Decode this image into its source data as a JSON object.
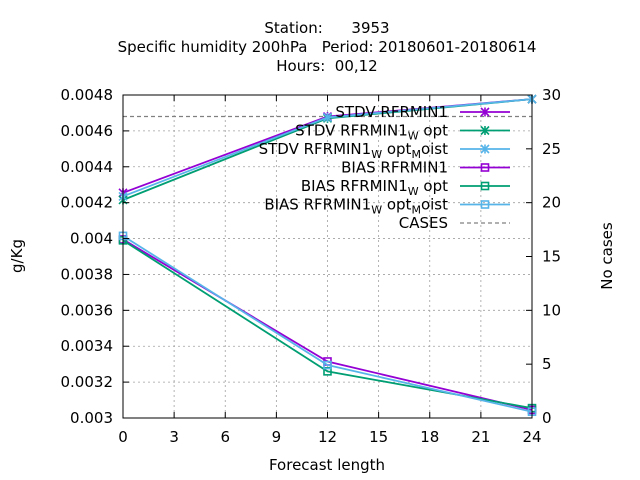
{
  "chart_data": {
    "type": "line",
    "title_lines": [
      "Station:      3953",
      "Specific humidity 200hPa   Period: 20180601-20180614",
      "Hours:  00,12"
    ],
    "xlabel": "Forecast length",
    "ylabel": "g/Kg",
    "y2label": "No cases",
    "xlim": [
      0,
      24
    ],
    "ylim": [
      0.003,
      0.0048
    ],
    "y2lim": [
      0,
      30
    ],
    "xticks": [
      "0",
      "3",
      "6",
      "9",
      "12",
      "15",
      "18",
      "21",
      "24"
    ],
    "yticks": [
      "0.003",
      "0.0032",
      "0.0034",
      "0.0036",
      "0.0038",
      "0.004",
      "0.0042",
      "0.0044",
      "0.0046",
      "0.0048"
    ],
    "y2ticks": [
      "0",
      "5",
      "10",
      "15",
      "20",
      "25",
      "30"
    ],
    "grid": true,
    "legend_position": "top-right",
    "x": [
      0,
      12,
      24
    ],
    "series": [
      {
        "name": "STDV RFRMIN1",
        "legend_main": "STDV RFRMIN1",
        "legend_sub": "",
        "legend_tail": "",
        "legend_sub2": "",
        "legend_tail2": "",
        "color": "#9400d3",
        "marker": "x",
        "axis": "y1",
        "values": [
          0.004255,
          0.00468,
          0.004777
        ]
      },
      {
        "name": "STDV RFRMIN1_W opt",
        "legend_main": "STDV RFRMIN1",
        "legend_sub": "W",
        "legend_tail": "opt",
        "legend_sub2": "",
        "legend_tail2": "",
        "color": "#009e73",
        "marker": "x",
        "axis": "y1",
        "values": [
          0.004215,
          0.00467,
          0.004777
        ]
      },
      {
        "name": "STDV RFRMIN1_W opt_M oist",
        "legend_main": "STDV RFRMIN1",
        "legend_sub": "W",
        "legend_tail": "opt",
        "legend_sub2": "M",
        "legend_tail2": "oist",
        "color": "#56b4e9",
        "marker": "x",
        "axis": "y1",
        "values": [
          0.004235,
          0.004675,
          0.004777
        ]
      },
      {
        "name": "BIAS RFRMIN1",
        "legend_main": "BIAS RFRMIN1",
        "legend_sub": "",
        "legend_tail": "",
        "legend_sub2": "",
        "legend_tail2": "",
        "color": "#9400d3",
        "marker": "square",
        "axis": "y1",
        "values": [
          0.003995,
          0.003315,
          0.003045
        ]
      },
      {
        "name": "BIAS RFRMIN1_W opt",
        "legend_main": "BIAS RFRMIN1",
        "legend_sub": "W",
        "legend_tail": "opt",
        "legend_sub2": "",
        "legend_tail2": "",
        "color": "#009e73",
        "marker": "square",
        "axis": "y1",
        "values": [
          0.00399,
          0.00326,
          0.003055
        ]
      },
      {
        "name": "BIAS RFRMIN1_W opt_M oist",
        "legend_main": "BIAS RFRMIN1",
        "legend_sub": "W",
        "legend_tail": "opt",
        "legend_sub2": "M",
        "legend_tail2": "oist",
        "color": "#56b4e9",
        "marker": "square",
        "axis": "y1",
        "values": [
          0.004015,
          0.003295,
          0.003035
        ]
      },
      {
        "name": "CASES",
        "legend_main": "CASES",
        "legend_sub": "",
        "legend_tail": "",
        "legend_sub2": "",
        "legend_tail2": "",
        "color": "#808080",
        "marker": "none",
        "dashed": true,
        "axis": "y2",
        "values": [
          28,
          28,
          28
        ]
      }
    ]
  }
}
